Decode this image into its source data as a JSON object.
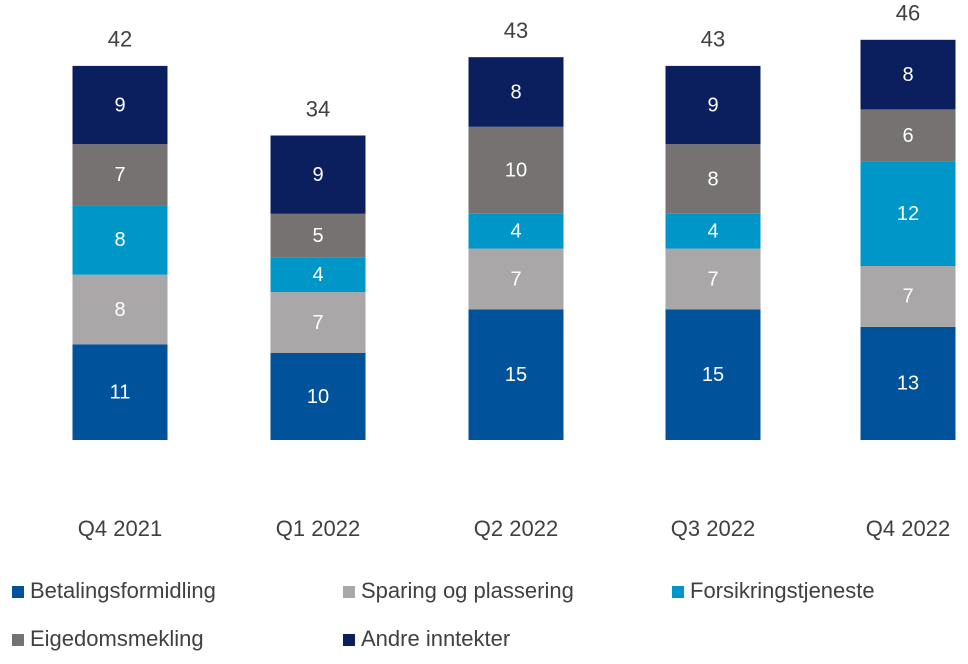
{
  "chart_data": {
    "type": "stacked_bar",
    "categories": [
      "Q4 2021",
      "Q1 2022",
      "Q2 2022",
      "Q3 2022",
      "Q4 2022"
    ],
    "series": [
      {
        "name": "Betalingsformidling",
        "color": "#00539b",
        "values": [
          11,
          10,
          15,
          15,
          13
        ]
      },
      {
        "name": "Sparing og plassering",
        "color": "#a9a7a7",
        "values": [
          8,
          7,
          7,
          7,
          7
        ]
      },
      {
        "name": "Forsikringstjeneste",
        "color": "#0096c7",
        "values": [
          8,
          4,
          4,
          4,
          12
        ]
      },
      {
        "name": "Eigedomsmekling",
        "color": "#767272",
        "values": [
          7,
          5,
          10,
          8,
          6
        ]
      },
      {
        "name": "Andre inntekter",
        "color": "#0b1f5e",
        "values": [
          9,
          9,
          8,
          9,
          8
        ]
      }
    ],
    "totals": [
      42,
      34,
      43,
      43,
      46
    ],
    "ylim": [
      0,
      50
    ],
    "legend": "bottom"
  }
}
